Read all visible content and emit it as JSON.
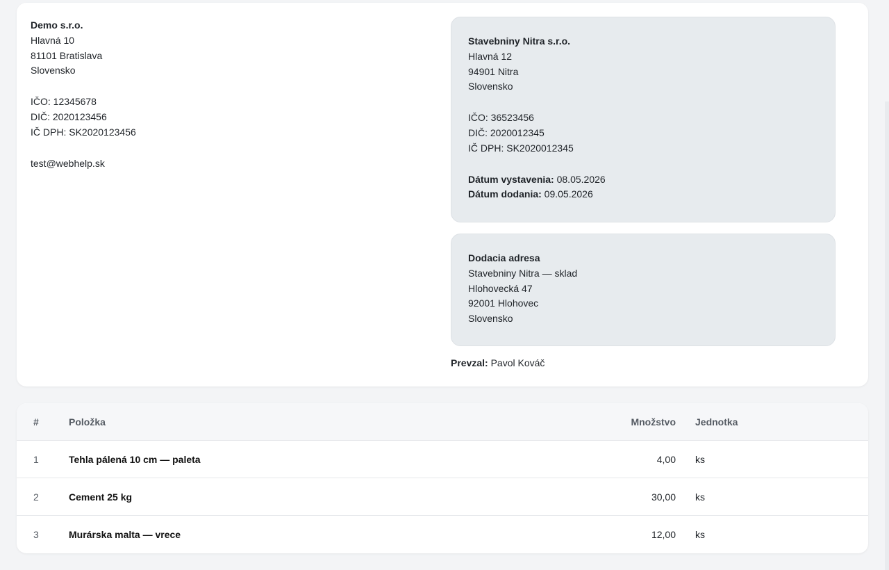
{
  "supplier": {
    "name": "Demo s.r.o.",
    "street": "Hlavná 10",
    "city": "81101 Bratislava",
    "country": "Slovensko",
    "ico": "IČO: 12345678",
    "dic": "DIČ: 2020123456",
    "icdph": "IČ DPH: SK2020123456",
    "email": "test@webhelp.sk"
  },
  "customer": {
    "name": "Stavebniny Nitra s.r.o.",
    "street": "Hlavná 12",
    "city": "94901 Nitra",
    "country": "Slovensko",
    "ico": "IČO: 36523456",
    "dic": "DIČ: 2020012345",
    "icdph": "IČ DPH: SK2020012345",
    "issue_label": "Dátum vystavenia:",
    "issue_date": "08.05.2026",
    "delivery_label": "Dátum dodania:",
    "delivery_date": "09.05.2026"
  },
  "delivery_address": {
    "title": "Dodacia adresa",
    "name": "Stavebniny Nitra — sklad",
    "street": "Hlohovecká 47",
    "city": "92001 Hlohovec",
    "country": "Slovensko"
  },
  "received": {
    "label": "Prevzal:",
    "value": "Pavol Kováč"
  },
  "table": {
    "headers": {
      "num": "#",
      "item": "Položka",
      "qty": "Množstvo",
      "unit": "Jednotka"
    },
    "rows": [
      {
        "num": "1",
        "item": "Tehla pálená 10 cm — paleta",
        "qty": "4,00",
        "unit": "ks"
      },
      {
        "num": "2",
        "item": "Cement 25 kg",
        "qty": "30,00",
        "unit": "ks"
      },
      {
        "num": "3",
        "item": "Murárska malta — vrece",
        "qty": "12,00",
        "unit": "ks"
      }
    ]
  }
}
